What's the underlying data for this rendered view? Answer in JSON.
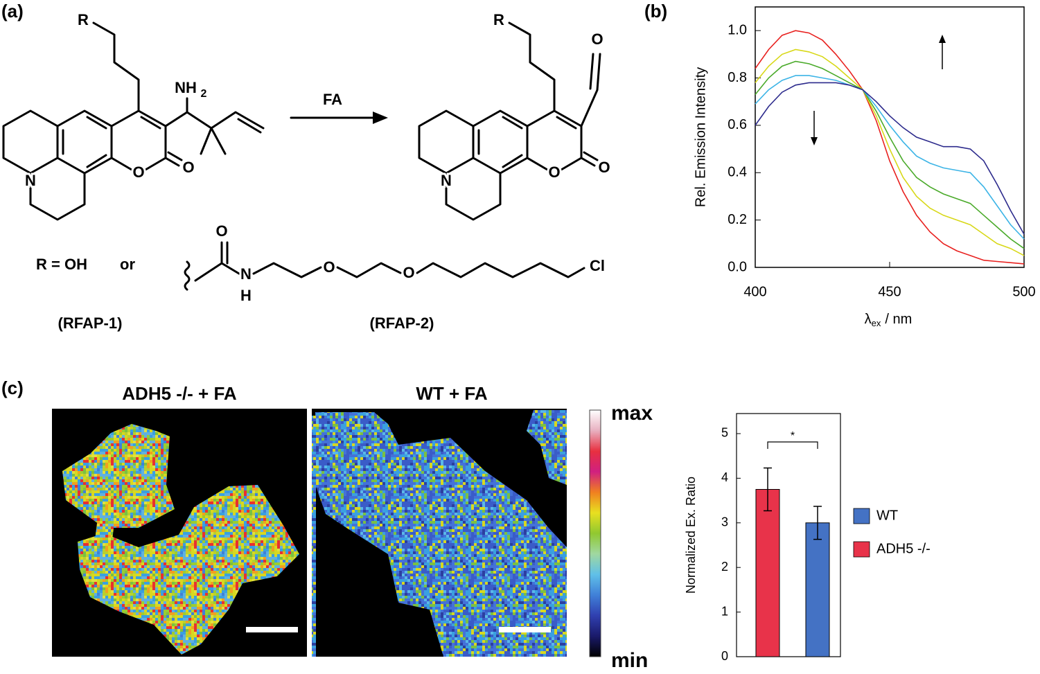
{
  "panel_labels": [
    "(a)",
    "(b)",
    "(c)"
  ],
  "scheme": {
    "reagent": "FA",
    "r_definition": "R = OH",
    "conjunction": "or",
    "probe_1": "(RFAP-1)",
    "probe_2": "(RFAP-2)",
    "atoms": [
      "R",
      "NH",
      "2",
      "O",
      "O",
      "N",
      "R",
      "O",
      "O",
      "N",
      "O",
      "O",
      "N",
      "H",
      "O",
      "O",
      "Cl"
    ]
  },
  "images": {
    "titles": [
      "ADH5 -/- + FA",
      "WT + FA"
    ],
    "colorbar": {
      "max": "max",
      "min": "min"
    }
  },
  "chart_data": [
    {
      "type": "line",
      "x_label": {
        "symbol": "λ",
        "subscript": "ex",
        "unit": "/ nm"
      },
      "y_label": "Rel. Emission Intensity",
      "x": [
        400,
        405,
        410,
        415,
        420,
        425,
        430,
        435,
        440,
        445,
        450,
        455,
        460,
        465,
        470,
        475,
        480,
        485,
        490,
        495,
        500
      ],
      "series": [
        {
          "color": "#e8201e",
          "values": [
            0.84,
            0.92,
            0.98,
            1.0,
            0.99,
            0.96,
            0.9,
            0.83,
            0.75,
            0.62,
            0.45,
            0.32,
            0.22,
            0.15,
            0.1,
            0.07,
            0.05,
            0.03,
            0.025,
            0.02,
            0.015
          ]
        },
        {
          "color": "#d8d818",
          "values": [
            0.78,
            0.85,
            0.9,
            0.92,
            0.91,
            0.89,
            0.85,
            0.8,
            0.75,
            0.64,
            0.5,
            0.38,
            0.3,
            0.25,
            0.22,
            0.2,
            0.18,
            0.14,
            0.1,
            0.08,
            0.05
          ]
        },
        {
          "color": "#4aaa2a",
          "values": [
            0.73,
            0.8,
            0.85,
            0.87,
            0.86,
            0.84,
            0.81,
            0.78,
            0.75,
            0.66,
            0.55,
            0.45,
            0.38,
            0.34,
            0.31,
            0.29,
            0.27,
            0.22,
            0.17,
            0.12,
            0.08
          ]
        },
        {
          "color": "#3cb4e6",
          "values": [
            0.69,
            0.75,
            0.79,
            0.81,
            0.81,
            0.8,
            0.79,
            0.77,
            0.75,
            0.68,
            0.6,
            0.53,
            0.47,
            0.44,
            0.42,
            0.41,
            0.4,
            0.34,
            0.26,
            0.18,
            0.12
          ]
        },
        {
          "color": "#2c2a8c",
          "values": [
            0.6,
            0.68,
            0.74,
            0.77,
            0.78,
            0.78,
            0.78,
            0.77,
            0.75,
            0.7,
            0.64,
            0.59,
            0.55,
            0.53,
            0.51,
            0.51,
            0.5,
            0.45,
            0.35,
            0.24,
            0.14
          ]
        }
      ],
      "xlim": [
        400,
        500
      ],
      "ylim": [
        0,
        1.1
      ],
      "xticks": [
        400,
        450,
        500
      ],
      "yticks": [
        {
          "value": 0,
          "label": "0.0"
        },
        {
          "value": 0.2,
          "label": "0.2"
        },
        {
          "value": 0.4,
          "label": "0.4"
        },
        {
          "value": 0.6,
          "label": "0.6"
        },
        {
          "value": 0.8,
          "label": "0.8"
        },
        {
          "value": 1.0,
          "label": "1.0"
        }
      ]
    },
    {
      "type": "bar",
      "y_label": "Normalized Ex. Ratio",
      "series": [
        {
          "name": "ADH5 -/-",
          "color": "#e8334a",
          "values": [
            3.75
          ],
          "errors": [
            0.48
          ]
        },
        {
          "name": "WT",
          "color": "#4472c4",
          "values": [
            3.0
          ],
          "errors": [
            0.37
          ]
        }
      ],
      "ylim": [
        0,
        5.45
      ],
      "yticks": [
        0,
        1,
        2,
        3,
        4,
        5
      ],
      "annotation": "*"
    }
  ]
}
